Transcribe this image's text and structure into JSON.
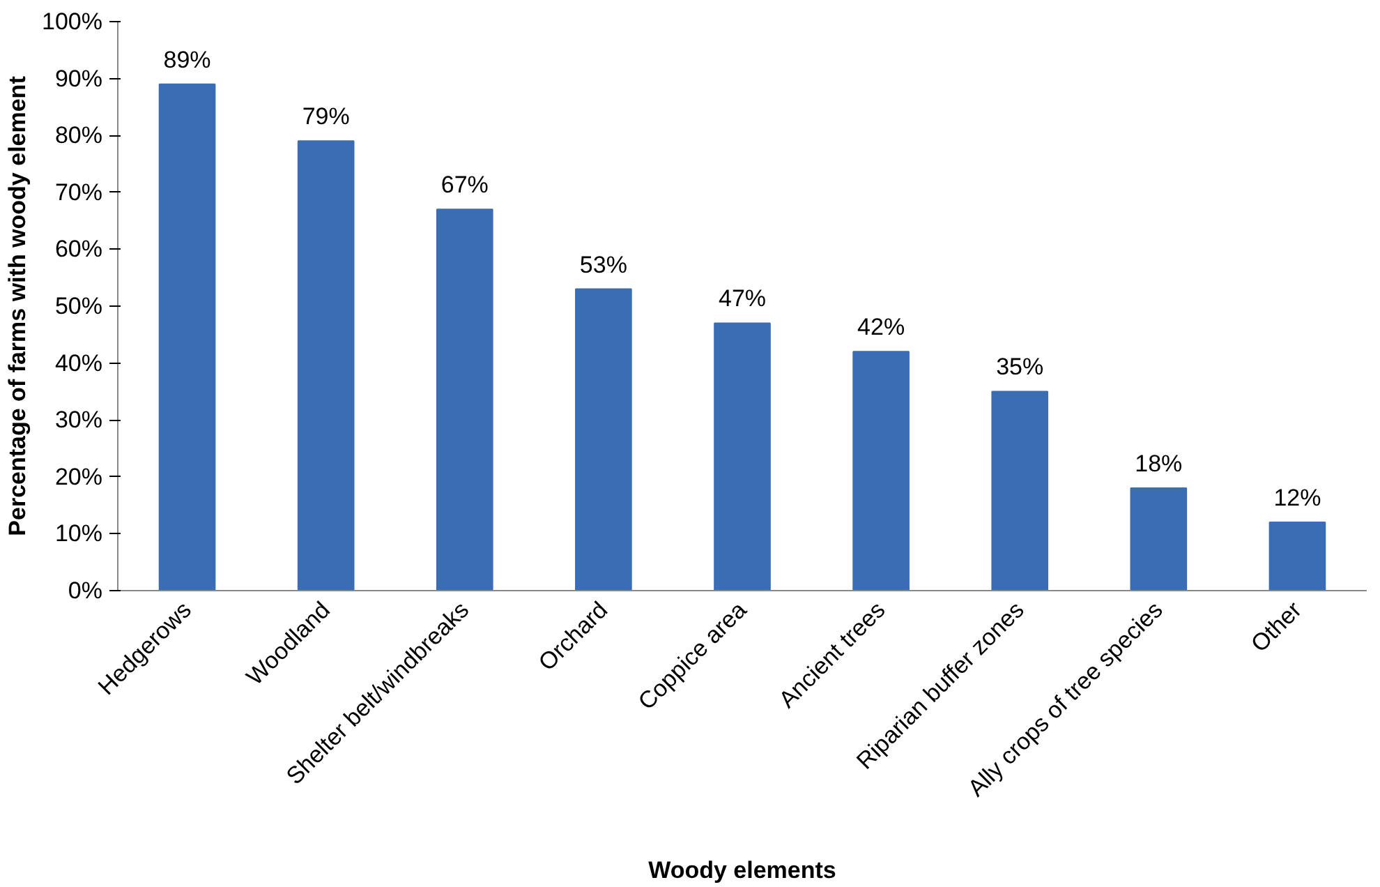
{
  "chart_data": {
    "type": "bar",
    "xlabel": "Woody elements",
    "ylabel": "Percentage of farms with woody element",
    "categories": [
      "Hedgerows",
      "Woodland",
      "Shelter belt/windbreaks",
      "Orchard",
      "Coppice area",
      "Ancient trees",
      "Riparian buffer zones",
      "Ally crops of tree species",
      "Other"
    ],
    "values": [
      89,
      79,
      67,
      53,
      47,
      42,
      35,
      18,
      12
    ],
    "value_labels": [
      "89%",
      "79%",
      "67%",
      "53%",
      "47%",
      "42%",
      "35%",
      "18%",
      "12%"
    ],
    "color": "#3a6db3",
    "ylim": [
      0,
      100
    ],
    "yticks": [
      {
        "value": 0,
        "label": "0%"
      },
      {
        "value": 10,
        "label": "10%"
      },
      {
        "value": 20,
        "label": "20%"
      },
      {
        "value": 30,
        "label": "30%"
      },
      {
        "value": 40,
        "label": "40%"
      },
      {
        "value": 50,
        "label": "50%"
      },
      {
        "value": 60,
        "label": "60%"
      },
      {
        "value": 70,
        "label": "70%"
      },
      {
        "value": 80,
        "label": "80%"
      },
      {
        "value": 90,
        "label": "90%"
      },
      {
        "value": 100,
        "label": "100%"
      }
    ],
    "grid": false
  }
}
